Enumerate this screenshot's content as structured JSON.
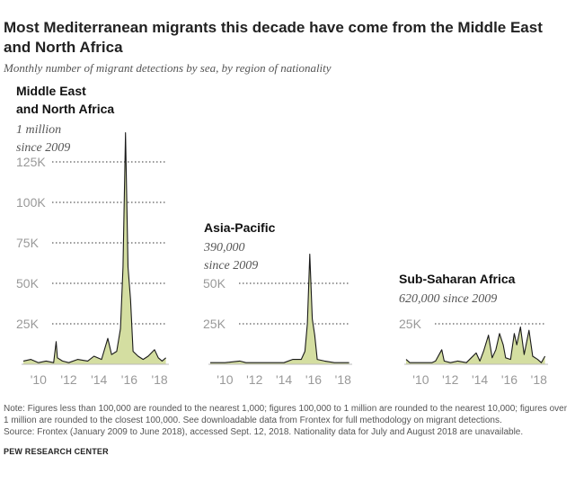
{
  "title": "Most Mediterranean migrants this decade have come from the Middle East and North Africa",
  "subtitle": "Monthly number of migrant detections by sea, by region of nationality",
  "notes": [
    "Note: Figures less than 100,000 are rounded to the nearest 1,000; figures 100,000 to 1 million are rounded to the nearest 10,000; figures over 1 million are rounded to the closest 100,000. See downloadable data from Frontex for full methodology on migrant detections.",
    "Source: Frontex (January 2009 to June 2018), accessed Sept. 12, 2018. Nationality data for July and August 2018 are unavailable."
  ],
  "logo": "PEW RESEARCH CENTER",
  "colors": {
    "area_fill": "#d4dea1",
    "line": "#1a1a1a",
    "grid": "#333333",
    "tick_text": "#999999"
  },
  "chart_data": [
    {
      "type": "area",
      "title_lines": [
        "Middle East",
        "and North Africa"
      ],
      "subtitle_lines": [
        "1 million",
        "since 2009"
      ],
      "x_ticks": [
        "'10",
        "'12",
        "'14",
        "'16",
        "'18"
      ],
      "y_ticks": [
        25000,
        50000,
        75000,
        100000,
        125000
      ],
      "y_tick_labels": [
        "25K",
        "50K",
        "75K",
        "100K",
        "125K"
      ],
      "ylim": [
        0,
        140000
      ],
      "grid": "dotted",
      "series": [
        {
          "points": [
            [
              "2009-01",
              2000
            ],
            [
              "2009-07",
              3000
            ],
            [
              "2010-01",
              1000
            ],
            [
              "2010-07",
              2000
            ],
            [
              "2011-01",
              1000
            ],
            [
              "2011-03",
              14000
            ],
            [
              "2011-04",
              4000
            ],
            [
              "2011-08",
              2000
            ],
            [
              "2012-01",
              1000
            ],
            [
              "2012-08",
              3000
            ],
            [
              "2013-04",
              2000
            ],
            [
              "2013-09",
              5000
            ],
            [
              "2014-03",
              3000
            ],
            [
              "2014-08",
              16000
            ],
            [
              "2014-11",
              6000
            ],
            [
              "2015-03",
              8000
            ],
            [
              "2015-06",
              22000
            ],
            [
              "2015-08",
              60000
            ],
            [
              "2015-10",
              143000
            ],
            [
              "2015-12",
              60000
            ],
            [
              "2016-02",
              40000
            ],
            [
              "2016-04",
              8000
            ],
            [
              "2016-08",
              5000
            ],
            [
              "2016-12",
              3000
            ],
            [
              "2017-04",
              5000
            ],
            [
              "2017-09",
              9000
            ],
            [
              "2017-12",
              4000
            ],
            [
              "2018-03",
              2000
            ],
            [
              "2018-06",
              4000
            ]
          ]
        }
      ]
    },
    {
      "type": "area",
      "title_lines": [
        "Asia-Pacific"
      ],
      "subtitle_lines": [
        "390,000",
        "since 2009"
      ],
      "x_ticks": [
        "'10",
        "'12",
        "'14",
        "'16",
        "'18"
      ],
      "y_ticks": [
        25000,
        50000
      ],
      "y_tick_labels": [
        "25K",
        "50K"
      ],
      "ylim": [
        0,
        140000
      ],
      "grid": "dotted",
      "series": [
        {
          "points": [
            [
              "2009-01",
              1000
            ],
            [
              "2010-01",
              1000
            ],
            [
              "2011-01",
              2000
            ],
            [
              "2011-06",
              1000
            ],
            [
              "2012-06",
              1000
            ],
            [
              "2013-06",
              1000
            ],
            [
              "2014-01",
              1000
            ],
            [
              "2014-08",
              3000
            ],
            [
              "2015-03",
              3000
            ],
            [
              "2015-06",
              8000
            ],
            [
              "2015-08",
              25000
            ],
            [
              "2015-10",
              68000
            ],
            [
              "2015-12",
              28000
            ],
            [
              "2016-02",
              18000
            ],
            [
              "2016-04",
              3000
            ],
            [
              "2016-10",
              2000
            ],
            [
              "2017-06",
              1000
            ],
            [
              "2018-01",
              1000
            ],
            [
              "2018-06",
              1000
            ]
          ]
        }
      ]
    },
    {
      "type": "area",
      "title_lines": [
        "Sub-Saharan Africa"
      ],
      "subtitle_lines": [
        "620,000 since 2009"
      ],
      "x_ticks": [
        "'10",
        "'12",
        "'14",
        "'16",
        "'18"
      ],
      "y_ticks": [
        25000
      ],
      "y_tick_labels": [
        "25K"
      ],
      "ylim": [
        0,
        140000
      ],
      "grid": "dotted",
      "series": [
        {
          "points": [
            [
              "2009-01",
              3000
            ],
            [
              "2009-04",
              1000
            ],
            [
              "2009-08",
              1000
            ],
            [
              "2010-03",
              1000
            ],
            [
              "2010-10",
              1000
            ],
            [
              "2011-01",
              2000
            ],
            [
              "2011-06",
              9000
            ],
            [
              "2011-08",
              2000
            ],
            [
              "2012-01",
              1000
            ],
            [
              "2012-07",
              2000
            ],
            [
              "2013-02",
              1000
            ],
            [
              "2013-06",
              4000
            ],
            [
              "2013-10",
              7000
            ],
            [
              "2014-01",
              2000
            ],
            [
              "2014-04",
              8000
            ],
            [
              "2014-08",
              18000
            ],
            [
              "2014-11",
              4000
            ],
            [
              "2015-02",
              9000
            ],
            [
              "2015-05",
              19000
            ],
            [
              "2015-08",
              12000
            ],
            [
              "2015-10",
              4000
            ],
            [
              "2016-02",
              3000
            ],
            [
              "2016-05",
              19000
            ],
            [
              "2016-07",
              12000
            ],
            [
              "2016-10",
              23000
            ],
            [
              "2017-01",
              6000
            ],
            [
              "2017-05",
              21000
            ],
            [
              "2017-08",
              5000
            ],
            [
              "2017-12",
              3000
            ],
            [
              "2018-03",
              1000
            ],
            [
              "2018-06",
              5000
            ]
          ]
        }
      ]
    }
  ]
}
